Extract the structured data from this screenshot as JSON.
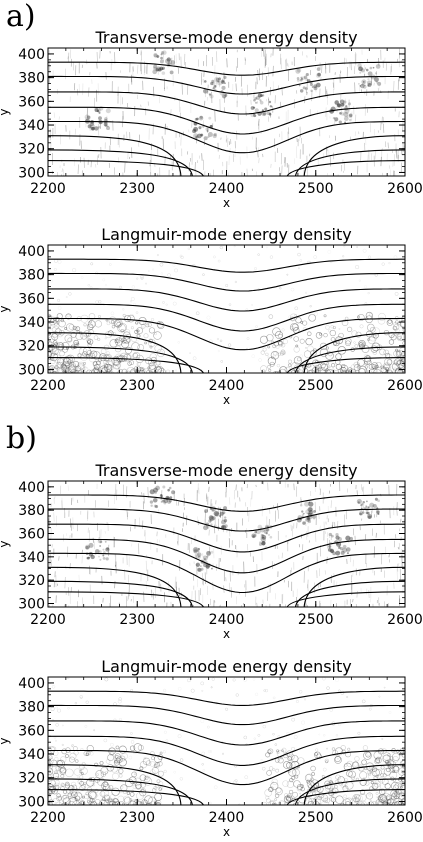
{
  "panels": [
    {
      "label": "a)"
    },
    {
      "label": "b)"
    }
  ],
  "chart_data": [
    {
      "type": "heatmap",
      "panel": "a",
      "title": "Transverse-mode energy density",
      "xlabel": "x",
      "ylabel": "y",
      "xlim": [
        2200,
        2600
      ],
      "ylim": [
        297,
        405
      ],
      "xticks": [
        2200,
        2300,
        2400,
        2500,
        2600
      ],
      "yticks": [
        300,
        320,
        340,
        360,
        380,
        400
      ],
      "contour_levels_y_at_edges": [
        393,
        381,
        368,
        355,
        343,
        331,
        319,
        310
      ],
      "contour_dip": 11,
      "texture": "transverse",
      "colors": {
        "contour": "#000000",
        "density": "#333333"
      }
    },
    {
      "type": "heatmap",
      "panel": "a",
      "title": "Langmuir-mode energy density",
      "xlabel": "x",
      "ylabel": "y",
      "xlim": [
        2200,
        2600
      ],
      "ylim": [
        297,
        405
      ],
      "xticks": [
        2200,
        2300,
        2400,
        2500,
        2600
      ],
      "yticks": [
        300,
        320,
        340,
        360,
        380,
        400
      ],
      "contour_levels_y_at_edges": [
        393,
        381,
        368,
        355,
        343,
        331,
        319,
        310
      ],
      "contour_dip": 11,
      "texture": "langmuir",
      "colors": {
        "contour": "#000000",
        "density": "#444444"
      }
    },
    {
      "type": "heatmap",
      "panel": "b",
      "title": "Transverse-mode energy density",
      "xlabel": "x",
      "ylabel": "y",
      "xlim": [
        2200,
        2600
      ],
      "ylim": [
        297,
        405
      ],
      "xticks": [
        2200,
        2300,
        2400,
        2500,
        2600
      ],
      "yticks": [
        300,
        320,
        340,
        360,
        380,
        400
      ],
      "contour_levels_y_at_edges": [
        393,
        381,
        368,
        355,
        343,
        331,
        319,
        310
      ],
      "contour_dip": 14,
      "texture": "transverse",
      "colors": {
        "contour": "#000000",
        "density": "#333333"
      }
    },
    {
      "type": "heatmap",
      "panel": "b",
      "title": "Langmuir-mode energy density",
      "xlabel": "x",
      "ylabel": "y",
      "xlim": [
        2200,
        2600
      ],
      "ylim": [
        297,
        405
      ],
      "xticks": [
        2200,
        2300,
        2400,
        2500,
        2600
      ],
      "yticks": [
        300,
        320,
        340,
        360,
        380,
        400
      ],
      "contour_levels_y_at_edges": [
        393,
        381,
        368,
        355,
        343,
        331,
        319,
        310
      ],
      "contour_dip": 12,
      "texture": "langmuir",
      "colors": {
        "contour": "#000000",
        "density": "#444444"
      }
    }
  ]
}
